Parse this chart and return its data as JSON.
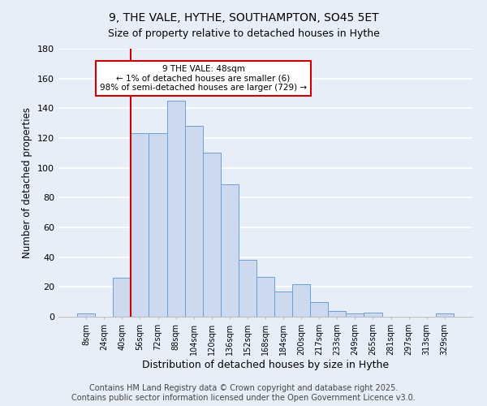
{
  "title": "9, THE VALE, HYTHE, SOUTHAMPTON, SO45 5ET",
  "subtitle": "Size of property relative to detached houses in Hythe",
  "xlabel": "Distribution of detached houses by size in Hythe",
  "ylabel": "Number of detached properties",
  "bar_color": "#cdd9ef",
  "bar_edge_color": "#6b9fd4",
  "categories": [
    "8sqm",
    "24sqm",
    "40sqm",
    "56sqm",
    "72sqm",
    "88sqm",
    "104sqm",
    "120sqm",
    "136sqm",
    "152sqm",
    "168sqm",
    "184sqm",
    "200sqm",
    "217sqm",
    "233sqm",
    "249sqm",
    "265sqm",
    "281sqm",
    "297sqm",
    "313sqm",
    "329sqm"
  ],
  "values": [
    2,
    0,
    26,
    123,
    123,
    145,
    128,
    110,
    89,
    38,
    27,
    17,
    22,
    10,
    4,
    2,
    3,
    0,
    0,
    0,
    2
  ],
  "ylim": [
    0,
    180
  ],
  "yticks": [
    0,
    20,
    40,
    60,
    80,
    100,
    120,
    140,
    160,
    180
  ],
  "vline_x_index": 3,
  "vline_color": "#cc0000",
  "annotation_text": "9 THE VALE: 48sqm\n← 1% of detached houses are smaller (6)\n98% of semi-detached houses are larger (729) →",
  "annotation_box_color": "white",
  "annotation_box_edge": "#cc0000",
  "footer1": "Contains HM Land Registry data © Crown copyright and database right 2025.",
  "footer2": "Contains public sector information licensed under the Open Government Licence v3.0.",
  "background_color": "#e8eef8",
  "plot_bg_color": "#e8eef8",
  "grid_color": "white",
  "title_fontsize": 10,
  "subtitle_fontsize": 9,
  "footer_fontsize": 7
}
